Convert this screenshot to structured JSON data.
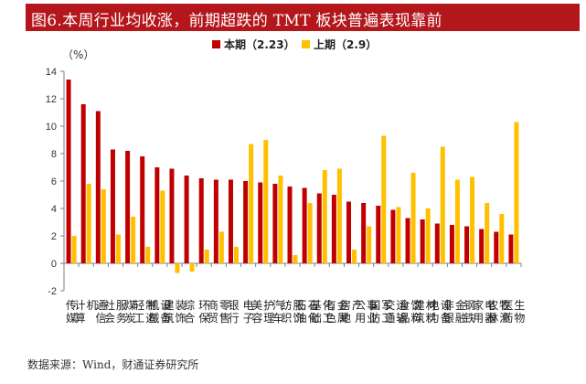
{
  "title": "图6.本周行业均收涨，前期超跌的 TMT 板块普遍表现靠前",
  "source": "数据来源：Wind，财通证券研究所",
  "colors": {
    "title_bg": "#b3161b",
    "this_period": "#c00000",
    "last_period": "#ffc000",
    "axis": "#7f7f7f"
  },
  "chart_data": {
    "type": "bar",
    "title": "",
    "ylabel": "（%）",
    "ylim": [
      -2,
      14
    ],
    "yticks": [
      -2,
      0,
      2,
      4,
      6,
      8,
      10,
      12,
      14
    ],
    "categories": [
      "传媒",
      "计算机",
      "通信",
      "社会服务",
      "煤炭",
      "轻工制造",
      "机械设备",
      "建筑装饰",
      "综合",
      "环保",
      "商贸零售",
      "银行",
      "电子",
      "美容护理",
      "汽车",
      "纺织服饰",
      "石油石化",
      "基础化工",
      "有色金属",
      "房地产",
      "公用事业",
      "国防军工",
      "交通运输",
      "食品饮料",
      "建筑材料",
      "电力设备",
      "非银金融",
      "钢铁",
      "家用电器",
      "农林牧渔",
      "医药生物"
    ],
    "series": [
      {
        "name": "本期（2.23）",
        "values": [
          13.4,
          11.6,
          11.1,
          8.3,
          8.2,
          7.8,
          7.0,
          6.9,
          6.4,
          6.2,
          6.1,
          6.1,
          6.0,
          5.9,
          5.8,
          5.6,
          5.5,
          5.1,
          5.0,
          4.5,
          4.4,
          4.2,
          3.9,
          3.3,
          3.2,
          2.9,
          2.8,
          2.7,
          2.5,
          2.3,
          2.1
        ]
      },
      {
        "name": "上期（2.9）",
        "values": [
          2.0,
          5.8,
          5.4,
          2.1,
          3.4,
          1.2,
          5.3,
          -0.7,
          -0.6,
          1.0,
          2.3,
          1.2,
          8.7,
          9.0,
          6.4,
          0.6,
          4.4,
          6.8,
          6.9,
          1.0,
          2.7,
          9.3,
          4.1,
          6.6,
          4.0,
          8.5,
          6.1,
          6.3,
          4.4,
          3.6,
          10.3
        ]
      }
    ]
  }
}
